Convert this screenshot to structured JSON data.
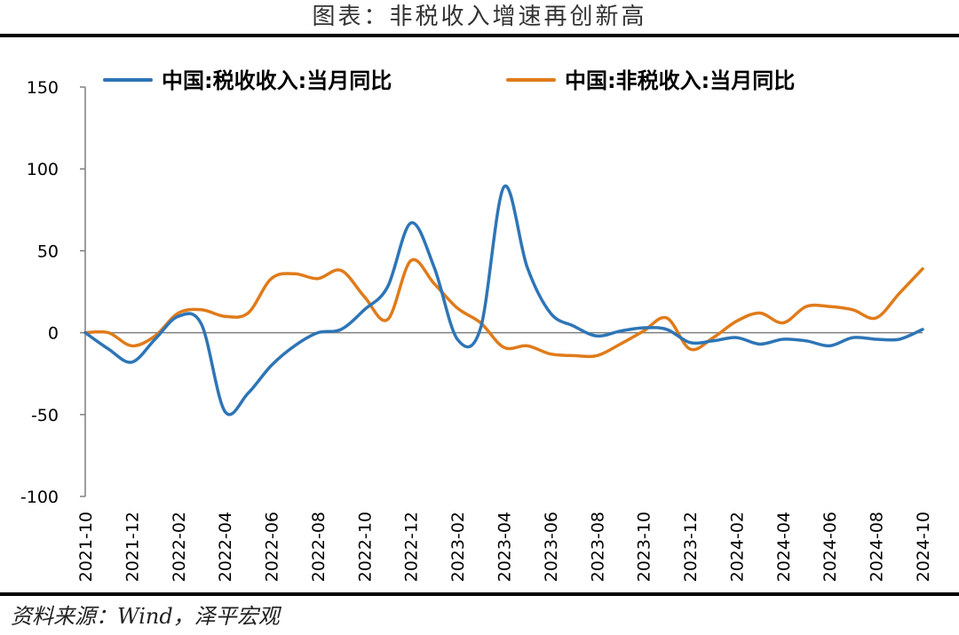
{
  "header": {
    "title": "图表：非税收入增速再创新高"
  },
  "footer": {
    "source": "资料来源：Wind，泽平宏观"
  },
  "chart_data": {
    "type": "line",
    "title": "图表：非税收入增速再创新高",
    "xlabel": "",
    "ylabel": "",
    "ylim": [
      -100,
      150
    ],
    "yticks": [
      "150",
      "100",
      "50",
      "0",
      "-50",
      "-100"
    ],
    "xtick_labels": [
      "2021-10",
      "2021-12",
      "2022-02",
      "2022-04",
      "2022-06",
      "2022-08",
      "2022-10",
      "2022-12",
      "2023-02",
      "2023-04",
      "2023-06",
      "2023-08",
      "2023-10",
      "2023-12",
      "2024-02",
      "2024-04",
      "2024-06",
      "2024-08",
      "2024-10"
    ],
    "x": [
      "2021-10",
      "2021-11",
      "2021-12",
      "2022-01",
      "2022-02",
      "2022-03",
      "2022-04",
      "2022-05",
      "2022-06",
      "2022-07",
      "2022-08",
      "2022-09",
      "2022-10",
      "2022-11",
      "2022-12",
      "2023-01",
      "2023-02",
      "2023-03",
      "2023-04",
      "2023-05",
      "2023-06",
      "2023-07",
      "2023-08",
      "2023-09",
      "2023-10",
      "2023-11",
      "2023-12",
      "2024-01",
      "2024-02",
      "2024-03",
      "2024-04",
      "2024-05",
      "2024-06",
      "2024-07",
      "2024-08",
      "2024-09",
      "2024-10"
    ],
    "grid": false,
    "legend_position": "top",
    "series": [
      {
        "name": "中国:税收收入:当月同比",
        "color": "#2E75B6",
        "values": [
          0,
          -10,
          -18,
          -4,
          10,
          5,
          -48,
          -37,
          -20,
          -8,
          0,
          2,
          14,
          28,
          67,
          40,
          -4,
          3,
          89,
          40,
          12,
          4,
          -2,
          1,
          3,
          2,
          -6,
          -5,
          -3,
          -7,
          -4,
          -5,
          -8,
          -3,
          -4,
          -4,
          2
        ]
      },
      {
        "name": "中国:非税收入:当月同比",
        "color": "#E07B1A",
        "values": [
          0,
          0,
          -8,
          -2,
          12,
          14,
          10,
          12,
          33,
          36,
          33,
          38,
          22,
          8,
          44,
          30,
          15,
          6,
          -9,
          -8,
          -13,
          -14,
          -14,
          -7,
          1,
          9,
          -10,
          -3,
          7,
          12,
          6,
          16,
          16,
          14,
          9,
          24,
          39
        ]
      }
    ]
  }
}
